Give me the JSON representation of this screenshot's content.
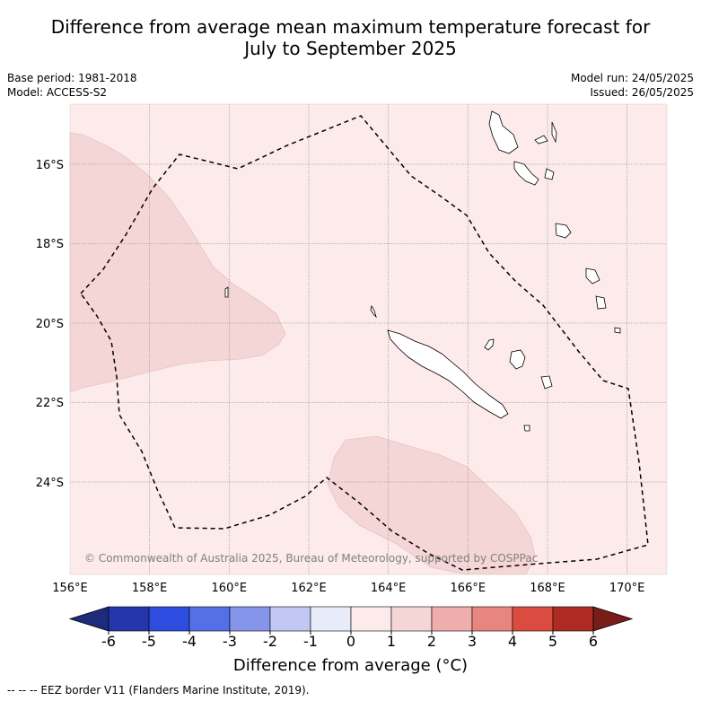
{
  "title_line1": "Difference from average mean maximum temperature forecast for",
  "title_line2": "July to September 2025",
  "meta": {
    "base_period": "Base period: 1981-2018",
    "model": "Model: ACCESS-S2",
    "model_run": "Model run: 24/05/2025",
    "issued": "Issued: 26/05/2025"
  },
  "credit": "© Commonwealth of Australia 2025, Bureau of Meteorology, supported by COSPPac",
  "lon_ticks": [
    "156°E",
    "158°E",
    "160°E",
    "162°E",
    "164°E",
    "166°E",
    "168°E",
    "170°E"
  ],
  "lat_ticks": [
    "16°S",
    "18°S",
    "20°S",
    "22°S",
    "24°S"
  ],
  "colorbar": {
    "label": "Difference from average (°C)",
    "ticks": [
      "-6",
      "-5",
      "-4",
      "-3",
      "-2",
      "-1",
      "0",
      "1",
      "2",
      "3",
      "4",
      "5",
      "6"
    ],
    "colors": [
      "#1c2c7a",
      "#2436aa",
      "#2f4ce0",
      "#5570e6",
      "#8595ea",
      "#c2c8f4",
      "#e8ebfa",
      "#fcebea",
      "#f5d6d6",
      "#efaeac",
      "#e8857f",
      "#dc4b3f",
      "#ae2b24",
      "#781d18"
    ]
  },
  "footer": "-- -- -- EEZ border V11 (Flanders Marine Institute, 2019).",
  "map_colors": {
    "background": "#fcebea",
    "anomaly_1_2": "#f5d6d6"
  }
}
